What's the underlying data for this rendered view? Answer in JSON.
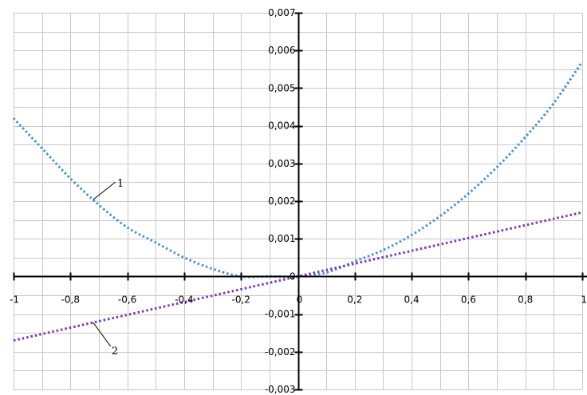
{
  "chart_data": {
    "type": "line",
    "title": "",
    "xlabel": "",
    "ylabel": "",
    "xlim": [
      -1,
      1
    ],
    "ylim": [
      -0.003,
      0.007
    ],
    "grid": true,
    "legend": "none",
    "x_ticks": [
      -1,
      -0.8,
      -0.6,
      -0.4,
      -0.2,
      0,
      0.2,
      0.4,
      0.6,
      0.8,
      1
    ],
    "x_tick_labels": [
      "-1",
      "-0,8",
      "-0,6",
      "-0,4",
      "-0,2",
      "0",
      "0,2",
      "0,4",
      "0,6",
      "0,8",
      "1"
    ],
    "y_ticks": [
      -0.003,
      -0.002,
      -0.001,
      0,
      0.001,
      0.002,
      0.003,
      0.004,
      0.005,
      0.006,
      0.007
    ],
    "y_tick_labels": [
      "-0,003",
      "-0,002",
      "-0,001",
      "0",
      "0,001",
      "0,002",
      "0,003",
      "0,004",
      "0,005",
      "0,006",
      "0,007"
    ],
    "series": [
      {
        "label": "1",
        "color": "#4a90d9",
        "style": "dotted",
        "x": [
          -1,
          -0.9,
          -0.8,
          -0.7,
          -0.6,
          -0.5,
          -0.4,
          -0.3,
          -0.2,
          -0.1,
          0,
          0.1,
          0.2,
          0.3,
          0.4,
          0.5,
          0.6,
          0.7,
          0.8,
          0.9,
          1
        ],
        "y": [
          0.0042,
          0.0034,
          0.0026,
          0.0019,
          0.0013,
          0.0009,
          0.0005,
          0.0002,
          0.0,
          0.0,
          0.0,
          0.0001,
          0.0004,
          0.0007,
          0.0011,
          0.0016,
          0.0022,
          0.0029,
          0.0037,
          0.0046,
          0.0057
        ]
      },
      {
        "label": "2",
        "color": "#7b35c1",
        "style": "dotted",
        "x": [
          -1,
          -0.5,
          0,
          0.5,
          1
        ],
        "y": [
          -0.0017,
          -0.00085,
          0,
          0.00085,
          0.0017
        ]
      }
    ],
    "annotations": [
      {
        "text": "1",
        "series": 0,
        "at_x": -0.72
      },
      {
        "text": "2",
        "series": 1,
        "at_x": -0.72
      }
    ]
  }
}
